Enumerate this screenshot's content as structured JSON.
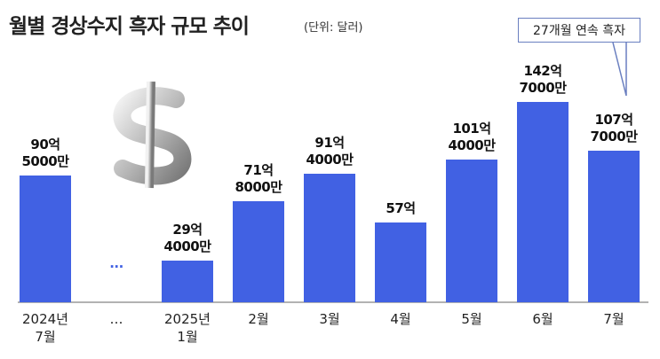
{
  "chart_data": {
    "type": "bar",
    "title": "월별 경상수지 흑자 규모 추이",
    "subtitle": "(단위: 달러)",
    "annotation": "27개월 연속 흑자",
    "categories": [
      "2024년\n7월",
      "…",
      "2025년\n1월",
      "2월",
      "3월",
      "4월",
      "5월",
      "6월",
      "7월"
    ],
    "values": [
      9050000000,
      null,
      2940000000,
      7180000000,
      9140000000,
      5700000000,
      10140000000,
      14270000000,
      10770000000
    ],
    "value_labels": [
      "90억\n5000만",
      "···",
      "29억\n4000만",
      "71억\n8000만",
      "91억\n4000만",
      "57억",
      "101억\n4000만",
      "142억\n7000만",
      "107억\n7000만"
    ],
    "color": "#4161e3"
  }
}
